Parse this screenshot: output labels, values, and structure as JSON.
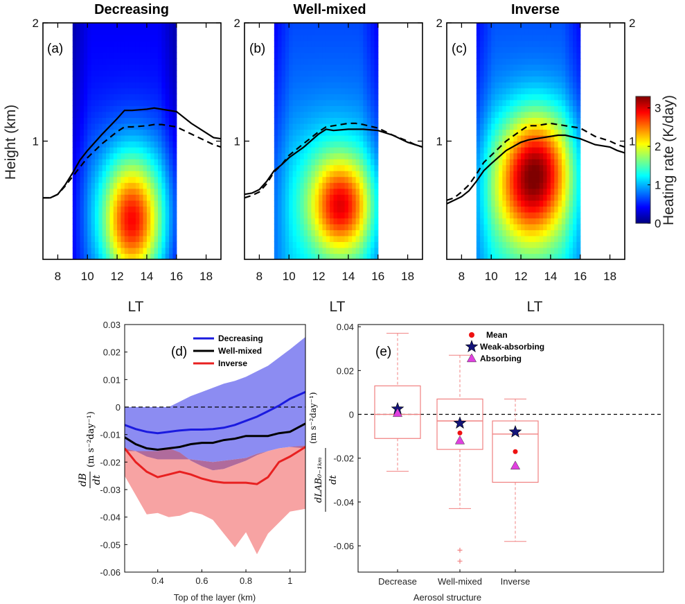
{
  "chart_data": [
    {
      "type": "heatmap",
      "panel_label": "(a)",
      "title": "Decreasing",
      "xlabel": "LT",
      "ylabel": "Height (km)",
      "xlim": [
        7,
        19
      ],
      "ylim": [
        0,
        2
      ],
      "xticks": [
        8,
        10,
        12,
        14,
        16,
        18
      ],
      "yticks": [
        1,
        2
      ],
      "data_window_lt": [
        9,
        16
      ],
      "heating_field": {
        "base_rate_k_per_day": 0.6,
        "hotspots": [
          {
            "lt": 13.0,
            "height_km": 0.3,
            "peak_k_per_day": 1.8,
            "spread_lt": 1.9,
            "spread_km": 0.5
          },
          {
            "lt": 13.0,
            "height_km": 0.55,
            "peak_k_per_day": 0.6,
            "spread_lt": 3.0,
            "spread_km": 0.6
          }
        ]
      },
      "series": [
        {
          "style": "solid",
          "x": [
            7.0,
            7.5,
            8.0,
            8.5,
            9.0,
            9.5,
            10.0,
            11.0,
            12.0,
            12.5,
            13.0,
            14.0,
            14.5,
            15.0,
            16.0,
            17.0,
            18.0,
            18.5,
            19.0
          ],
          "y": [
            0.52,
            0.52,
            0.55,
            0.63,
            0.73,
            0.84,
            0.92,
            1.06,
            1.19,
            1.26,
            1.26,
            1.27,
            1.28,
            1.27,
            1.25,
            1.15,
            1.07,
            1.03,
            1.02
          ]
        },
        {
          "style": "dashed",
          "x": [
            7.0,
            7.5,
            8.0,
            8.5,
            9.0,
            9.5,
            10.0,
            11.0,
            12.0,
            12.5,
            13.0,
            14.0,
            14.5,
            15.0,
            16.0,
            17.0,
            18.0,
            18.5,
            19.0
          ],
          "y": [
            0.52,
            0.52,
            0.55,
            0.62,
            0.7,
            0.78,
            0.86,
            0.98,
            1.08,
            1.12,
            1.12,
            1.13,
            1.14,
            1.14,
            1.12,
            1.06,
            1.0,
            0.97,
            0.95
          ]
        }
      ]
    },
    {
      "type": "heatmap",
      "panel_label": "(b)",
      "title": "Well-mixed",
      "xlabel": "LT",
      "xlim": [
        7,
        19
      ],
      "ylim": [
        0,
        2
      ],
      "xticks": [
        8,
        10,
        12,
        14,
        16,
        18
      ],
      "yticks": [
        1,
        2
      ],
      "data_window_lt": [
        9,
        16
      ],
      "heating_field": {
        "base_rate_k_per_day": 1.0,
        "hotspots": [
          {
            "lt": 13.5,
            "height_km": 0.45,
            "peak_k_per_day": 1.6,
            "spread_lt": 2.0,
            "spread_km": 0.4
          },
          {
            "lt": 13.0,
            "height_km": 0.6,
            "peak_k_per_day": 0.5,
            "spread_lt": 3.2,
            "spread_km": 0.6
          }
        ]
      },
      "series": [
        {
          "style": "solid",
          "x": [
            7.0,
            7.5,
            8.0,
            8.5,
            9.0,
            9.5,
            10.0,
            11.0,
            12.0,
            12.5,
            13.0,
            14.0,
            14.5,
            15.0,
            16.0,
            17.0,
            18.0,
            18.5,
            19.0
          ],
          "y": [
            0.55,
            0.56,
            0.59,
            0.66,
            0.75,
            0.8,
            0.86,
            0.95,
            1.06,
            1.1,
            1.09,
            1.1,
            1.1,
            1.1,
            1.09,
            1.05,
            0.99,
            0.97,
            0.95
          ]
        },
        {
          "style": "dashed",
          "x": [
            7.0,
            7.5,
            8.0,
            8.5,
            9.0,
            9.5,
            10.0,
            11.0,
            12.0,
            12.5,
            13.0,
            14.0,
            14.5,
            15.0,
            16.0,
            17.0,
            18.0,
            18.5,
            19.0
          ],
          "y": [
            0.52,
            0.54,
            0.57,
            0.64,
            0.74,
            0.8,
            0.88,
            0.98,
            1.08,
            1.12,
            1.13,
            1.15,
            1.15,
            1.14,
            1.11,
            1.05,
            1.0,
            0.97,
            0.95
          ]
        }
      ]
    },
    {
      "type": "heatmap",
      "panel_label": "(c)",
      "title": "Inverse",
      "xlabel": "LT",
      "xlim": [
        7,
        19
      ],
      "ylim": [
        0,
        2
      ],
      "xticks": [
        8,
        10,
        12,
        14,
        16,
        18
      ],
      "yticks": [
        1,
        2
      ],
      "data_window_lt": [
        9,
        16
      ],
      "colorbar": {
        "label": "Heating rate (K/day)",
        "range": [
          0,
          3.3
        ],
        "ticks": [
          0,
          1,
          2,
          3
        ]
      },
      "heating_field": {
        "base_rate_k_per_day": 1.05,
        "hotspots": [
          {
            "lt": 12.7,
            "height_km": 0.65,
            "peak_k_per_day": 2.1,
            "spread_lt": 2.6,
            "spread_km": 0.55
          },
          {
            "lt": 13.5,
            "height_km": 0.9,
            "peak_k_per_day": 0.5,
            "spread_lt": 2.0,
            "spread_km": 0.4
          }
        ]
      },
      "series": [
        {
          "style": "solid",
          "x": [
            7.0,
            7.5,
            8.0,
            8.5,
            9.0,
            9.5,
            10.0,
            11.0,
            12.0,
            12.5,
            13.0,
            14.0,
            14.5,
            15.0,
            16.0,
            17.0,
            18.0,
            18.5,
            19.0
          ],
          "y": [
            0.47,
            0.5,
            0.53,
            0.58,
            0.66,
            0.75,
            0.81,
            0.92,
            0.99,
            1.01,
            1.02,
            1.04,
            1.05,
            1.05,
            1.02,
            0.97,
            0.95,
            0.92,
            0.9
          ]
        },
        {
          "style": "dashed",
          "x": [
            7.0,
            7.5,
            8.0,
            8.5,
            9.0,
            9.5,
            10.0,
            11.0,
            12.0,
            12.5,
            13.0,
            14.0,
            14.5,
            15.0,
            16.0,
            17.0,
            18.0,
            18.5,
            19.0
          ],
          "y": [
            0.5,
            0.52,
            0.57,
            0.63,
            0.72,
            0.82,
            0.88,
            1.0,
            1.09,
            1.13,
            1.13,
            1.15,
            1.14,
            1.13,
            1.11,
            1.04,
            1.0,
            0.97,
            0.95
          ]
        }
      ]
    },
    {
      "type": "line",
      "panel_label": "(d)",
      "xlabel": "Top of the layer (km)",
      "ylabel_math": {
        "numerator": "dB",
        "denominator": "dt",
        "unit": "(m s⁻²day⁻¹)"
      },
      "xlim": [
        0.25,
        1.07
      ],
      "ylim": [
        -0.06,
        0.03
      ],
      "xticks": [
        0.4,
        0.6,
        0.8,
        1.0
      ],
      "xtick_labels": [
        "0.4",
        "0.6",
        "0.8",
        "1"
      ],
      "yticks": [
        -0.06,
        -0.05,
        -0.04,
        -0.03,
        -0.02,
        -0.01,
        0,
        0.01,
        0.02,
        0.03
      ],
      "ytick_labels": [
        "-0.06",
        "-0.05",
        "-0.04",
        "-0.03",
        "-0.02",
        "-0.01",
        "0",
        "0.01",
        "0.02",
        "0.03"
      ],
      "legend_position": "top-right",
      "reference_line_y": 0,
      "series": [
        {
          "name": "Decreasing",
          "color": "#1a1adf",
          "band_color": "#8c8cf2",
          "x": [
            0.25,
            0.3,
            0.35,
            0.4,
            0.45,
            0.5,
            0.55,
            0.6,
            0.65,
            0.7,
            0.75,
            0.8,
            0.85,
            0.9,
            0.95,
            1.0,
            1.07
          ],
          "y": [
            -0.0065,
            -0.008,
            -0.009,
            -0.0095,
            -0.009,
            -0.0085,
            -0.0082,
            -0.0082,
            -0.008,
            -0.0075,
            -0.0065,
            -0.005,
            -0.0035,
            -0.0015,
            0.0005,
            0.003,
            0.0055
          ],
          "band_upper": [
            0.0,
            0.0,
            0.0,
            0.0,
            0.0,
            0.002,
            0.004,
            0.0055,
            0.007,
            0.0085,
            0.0095,
            0.011,
            0.013,
            0.015,
            0.018,
            0.021,
            0.0255
          ],
          "band_lower": [
            -0.015,
            -0.016,
            -0.018,
            -0.019,
            -0.019,
            -0.019,
            -0.019,
            -0.0195,
            -0.02,
            -0.0195,
            -0.019,
            -0.0185,
            -0.017,
            -0.016,
            -0.015,
            -0.0145,
            -0.015
          ]
        },
        {
          "name": "Well-mixed",
          "color": "#000000",
          "x": [
            0.25,
            0.3,
            0.35,
            0.4,
            0.45,
            0.5,
            0.55,
            0.6,
            0.65,
            0.7,
            0.75,
            0.8,
            0.85,
            0.9,
            0.95,
            1.0,
            1.07
          ],
          "y": [
            -0.011,
            -0.0135,
            -0.015,
            -0.0155,
            -0.015,
            -0.0145,
            -0.0135,
            -0.013,
            -0.013,
            -0.012,
            -0.0115,
            -0.0105,
            -0.0105,
            -0.0105,
            -0.0095,
            -0.009,
            -0.006
          ]
        },
        {
          "name": "Inverse",
          "color": "#e82020",
          "band_color": "#f7a3a3",
          "x": [
            0.25,
            0.3,
            0.35,
            0.4,
            0.45,
            0.5,
            0.55,
            0.6,
            0.65,
            0.7,
            0.75,
            0.8,
            0.85,
            0.9,
            0.95,
            1.0,
            1.07
          ],
          "y": [
            -0.015,
            -0.02,
            -0.0235,
            -0.0255,
            -0.0245,
            -0.0235,
            -0.0245,
            -0.026,
            -0.027,
            -0.0275,
            -0.0275,
            -0.0275,
            -0.028,
            -0.0255,
            -0.02,
            -0.018,
            -0.0145
          ],
          "band_upper": [
            -0.016,
            -0.016,
            -0.016,
            -0.016,
            -0.015,
            -0.0165,
            -0.0195,
            -0.0215,
            -0.023,
            -0.0225,
            -0.021,
            -0.0195,
            -0.0175,
            -0.016,
            -0.015,
            -0.0145,
            -0.014
          ],
          "band_lower": [
            -0.025,
            -0.032,
            -0.039,
            -0.0385,
            -0.04,
            -0.0395,
            -0.038,
            -0.039,
            -0.041,
            -0.046,
            -0.051,
            -0.0455,
            -0.0535,
            -0.046,
            -0.042,
            -0.038,
            -0.037
          ]
        }
      ],
      "overlap_band_color": "#b06b9c"
    },
    {
      "type": "box",
      "panel_label": "(e)",
      "xlabel": "Aerosol structure",
      "ylabel_math": {
        "numerator": "dLAB₀₋₁ₖₘ",
        "denominator": "dt",
        "unit": "(m s⁻²day⁻¹)"
      },
      "ylim": [
        -0.072,
        0.041
      ],
      "yticks": [
        -0.06,
        -0.04,
        -0.02,
        0,
        0.02,
        0.04
      ],
      "ytick_labels": [
        "-0.06",
        "-0.04",
        "-0.02",
        "0",
        "0.02",
        "0.04"
      ],
      "categories": [
        "Decrease",
        "Well-mixed",
        "Inverse"
      ],
      "reference_line_y": 0,
      "box_color": "#f08080",
      "boxes": [
        {
          "whisker_low": -0.026,
          "q1": -0.011,
          "median": 0.0,
          "q3": 0.013,
          "whisker_high": 0.037,
          "outliers": []
        },
        {
          "whisker_low": -0.043,
          "q1": -0.016,
          "median": -0.003,
          "q3": 0.007,
          "whisker_high": 0.027,
          "outliers": [
            -0.062,
            -0.067
          ]
        },
        {
          "whisker_low": -0.058,
          "q1": -0.031,
          "median": -0.009,
          "q3": -0.003,
          "whisker_high": 0.007,
          "outliers": []
        }
      ],
      "markers": [
        {
          "name": "Mean",
          "shape": "circle",
          "color": "#ee1111",
          "values": [
            0.0005,
            -0.0085,
            -0.017
          ]
        },
        {
          "name": "Weak-absorbing",
          "shape": "star",
          "color": "#14147a",
          "values": [
            0.0025,
            -0.004,
            -0.008
          ]
        },
        {
          "name": "Absorbing",
          "shape": "triangle",
          "color": "#e040e0",
          "values": [
            0.0005,
            -0.012,
            -0.0235
          ]
        }
      ],
      "legend_position": "top-right"
    }
  ]
}
